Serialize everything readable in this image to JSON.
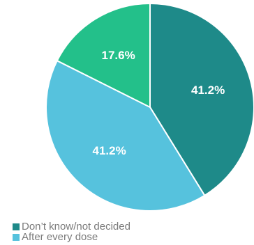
{
  "chart_data": {
    "type": "pie",
    "title": "",
    "start_angle_deg": 0,
    "direction": "clockwise",
    "slices": [
      {
        "label": "Don't know/not decided",
        "value": 41.2,
        "display": "41.2%",
        "color": "#1e8a89"
      },
      {
        "label": "After every dose",
        "value": 41.2,
        "display": "41.2%",
        "color": "#56c2dd"
      },
      {
        "label": "",
        "value": 17.6,
        "display": "17.6%",
        "color": "#23c08a"
      }
    ],
    "legend": {
      "placement": "bottom-left",
      "entries": [
        {
          "label": "Don’t know/not decided",
          "color": "#1e8a89"
        },
        {
          "label": "After every dose",
          "color": "#56c2dd"
        }
      ]
    },
    "label_color": "#ffffff"
  }
}
